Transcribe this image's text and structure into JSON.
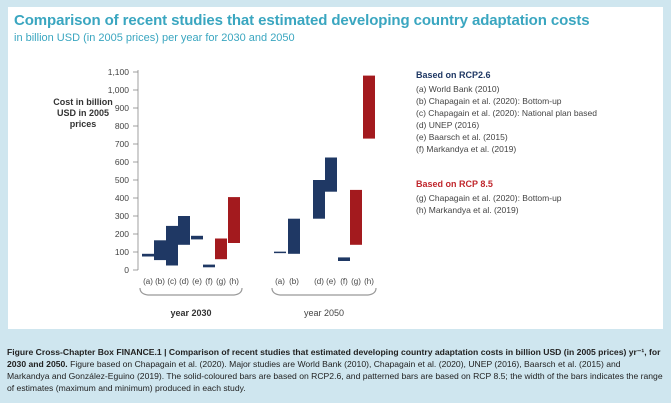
{
  "title": "Comparison of recent studies that estimated developing country adaptation costs",
  "subtitle": "in billion USD (in 2005 prices) per year for 2030 and 2050",
  "chart_data": {
    "type": "bar",
    "ylabel": "Cost in billion USD in 2005 prices",
    "ylim": [
      0,
      1100
    ],
    "yticks": [
      "0",
      "100",
      "200",
      "300",
      "400",
      "500",
      "600",
      "700",
      "800",
      "900",
      "1,000",
      "1,100"
    ],
    "groups": [
      "year 2030",
      "year 2050"
    ],
    "bars": [
      {
        "group": 0,
        "label": "(a)",
        "low": 75,
        "high": 90,
        "scenario": "RCP2.6"
      },
      {
        "group": 0,
        "label": "(b)",
        "low": 55,
        "high": 165,
        "scenario": "RCP2.6"
      },
      {
        "group": 0,
        "label": "(c)",
        "low": 25,
        "high": 245,
        "scenario": "RCP2.6"
      },
      {
        "group": 0,
        "label": "(d)",
        "low": 140,
        "high": 300,
        "scenario": "RCP2.6"
      },
      {
        "group": 0,
        "label": "(e)",
        "low": 170,
        "high": 190,
        "scenario": "RCP2.6"
      },
      {
        "group": 0,
        "label": "(f)",
        "low": 15,
        "high": 30,
        "scenario": "RCP2.6"
      },
      {
        "group": 0,
        "label": "(g)",
        "low": 60,
        "high": 175,
        "scenario": "RCP 8.5"
      },
      {
        "group": 0,
        "label": "(h)",
        "low": 150,
        "high": 405,
        "scenario": "RCP 8.5"
      },
      {
        "group": 1,
        "label": "(a)",
        "low": 98,
        "high": 102,
        "scenario": "RCP2.6"
      },
      {
        "group": 1,
        "label": "(b)",
        "low": 90,
        "high": 285,
        "scenario": "RCP2.6"
      },
      {
        "group": 1,
        "label": "(d)",
        "low": 285,
        "high": 500,
        "scenario": "RCP2.6"
      },
      {
        "group": 1,
        "label": "(e)",
        "low": 435,
        "high": 625,
        "scenario": "RCP2.6"
      },
      {
        "group": 1,
        "label": "(f)",
        "low": 50,
        "high": 70,
        "scenario": "RCP2.6"
      },
      {
        "group": 1,
        "label": "(g)",
        "low": 140,
        "high": 445,
        "scenario": "RCP 8.5"
      },
      {
        "group": 1,
        "label": "(h)",
        "low": 730,
        "high": 1080,
        "scenario": "RCP 8.5"
      }
    ],
    "group0_ticks": [
      "(a)",
      "(b)",
      "(c)",
      "(d)",
      "(e)",
      "(f)",
      "(g)",
      "(h)"
    ],
    "group1_ticks": [
      "(a)",
      "(b)",
      "",
      "(d)",
      "(e)",
      "(f)",
      "(g)",
      "(h)"
    ]
  },
  "legend": {
    "rcp26_title": "Based on RCP2.6",
    "rcp26_items": [
      "(a) World Bank (2010)",
      "(b) Chapagain et al. (2020): Bottom-up",
      "(c) Chapagain et al. (2020): National plan based",
      "(d) UNEP (2016)",
      "(e) Baarsch et al. (2015)",
      "(f) Markandya et al. (2019)"
    ],
    "rcp85_title": "Based on RCP 8.5",
    "rcp85_items": [
      "(g) Chapagain et al. (2020): Bottom-up",
      "(h) Markandya et al. (2019)"
    ]
  },
  "colors": {
    "rcp26": "#1f3864",
    "rcp85": "#a31a1e",
    "title": "#3aa6c0",
    "rcp85_text": "#c0272d"
  },
  "caption": {
    "bold": "Figure Cross-Chapter Box FINANCE.1 |  Comparison of recent studies that estimated developing country adaptation costs in billion USD (in 2005 prices) yr⁻¹, for 2030 and 2050.",
    "text": " Figure based on Chapagain et al. (2020). Major studies are World Bank (2010), Chapagain et al. (2020), UNEP (2016), Baarsch et al. (2015) and Markandya and González-Eguino (2019). The solid-coloured bars are based on RCP2.6, and patterned bars are based on RCP 8.5; the width of the bars indicates the range of estimates (maximum and minimum) produced in each study."
  }
}
